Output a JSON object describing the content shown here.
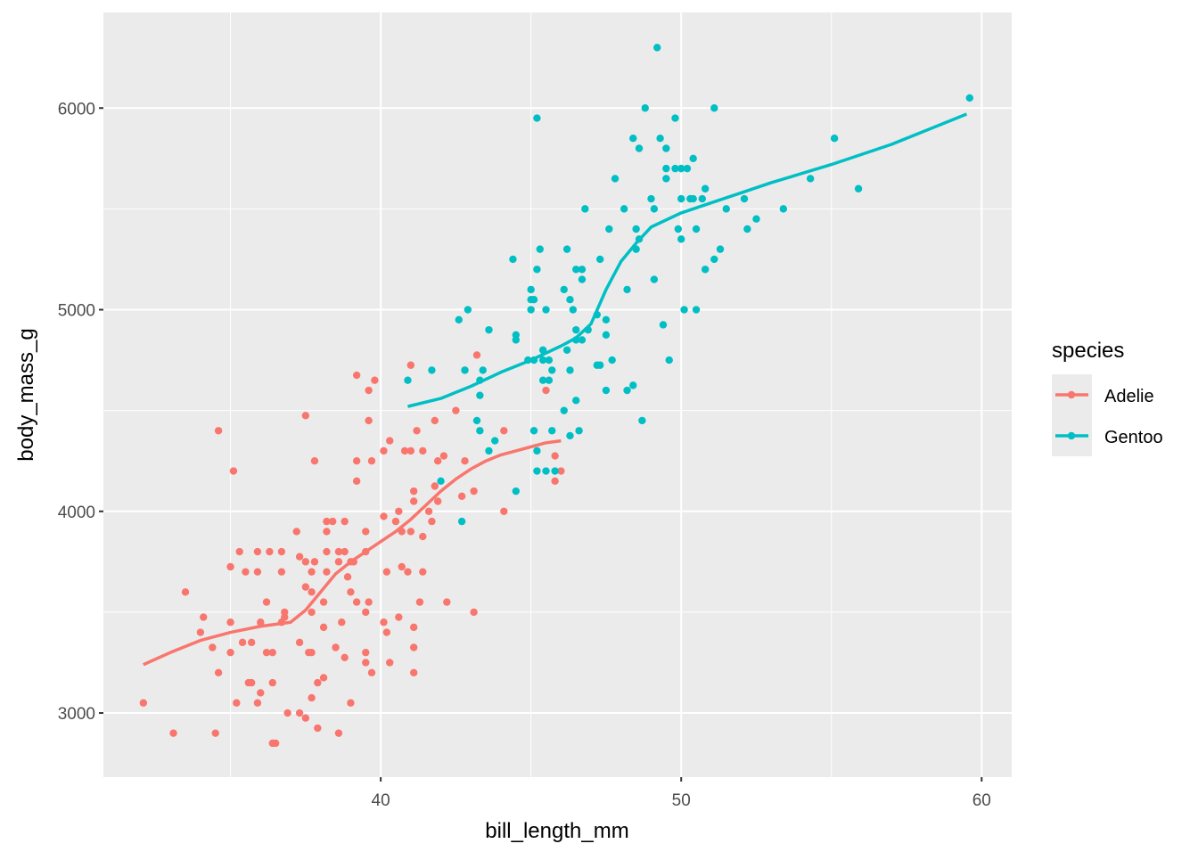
{
  "chart_data": {
    "type": "scatter",
    "xlabel": "bill_length_mm",
    "ylabel": "body_mass_g",
    "xlim": [
      30.77,
      61.0
    ],
    "ylim": [
      2682,
      6474
    ],
    "x_ticks": [
      40,
      50,
      60
    ],
    "x_minor": [
      35,
      45,
      55
    ],
    "y_ticks": [
      3000,
      4000,
      5000,
      6000
    ],
    "y_minor": [
      3500,
      4500,
      5500
    ],
    "grid": true,
    "legend": {
      "title": "species",
      "placement": "right"
    },
    "colors": {
      "panel": "#EBEBEB",
      "grid": "#FFFFFF",
      "tick_text": "#4D4D4D"
    },
    "series": [
      {
        "name": "Adelie",
        "color": "#F8766D",
        "points": [
          [
            32.1,
            3050
          ],
          [
            33.1,
            2900
          ],
          [
            34.5,
            2900
          ],
          [
            34.6,
            4400
          ],
          [
            35.1,
            4200
          ],
          [
            33.5,
            3600
          ],
          [
            34.1,
            3475
          ],
          [
            34.0,
            3400
          ],
          [
            34.4,
            3325
          ],
          [
            34.6,
            3200
          ],
          [
            35.0,
            3300
          ],
          [
            35.0,
            3450
          ],
          [
            35.2,
            3050
          ],
          [
            35.0,
            3725
          ],
          [
            35.3,
            3800
          ],
          [
            35.5,
            3700
          ],
          [
            35.9,
            3800
          ],
          [
            36.3,
            3800
          ],
          [
            36.7,
            3800
          ],
          [
            35.4,
            3350
          ],
          [
            35.7,
            3350
          ],
          [
            35.6,
            3150
          ],
          [
            35.7,
            3150
          ],
          [
            35.9,
            3050
          ],
          [
            36.0,
            3450
          ],
          [
            35.9,
            3700
          ],
          [
            36.2,
            3550
          ],
          [
            36.0,
            3100
          ],
          [
            36.2,
            3300
          ],
          [
            36.4,
            3300
          ],
          [
            36.4,
            3150
          ],
          [
            36.4,
            2850
          ],
          [
            36.5,
            2850
          ],
          [
            36.7,
            3450
          ],
          [
            36.8,
            3475
          ],
          [
            36.7,
            3700
          ],
          [
            36.8,
            3500
          ],
          [
            36.9,
            3000
          ],
          [
            37.3,
            3000
          ],
          [
            37.5,
            2975
          ],
          [
            37.5,
            3750
          ],
          [
            37.3,
            3775
          ],
          [
            37.2,
            3900
          ],
          [
            37.5,
            4475
          ],
          [
            37.8,
            4250
          ],
          [
            37.5,
            3625
          ],
          [
            37.7,
            3600
          ],
          [
            37.7,
            3700
          ],
          [
            37.8,
            3750
          ],
          [
            37.7,
            3500
          ],
          [
            37.3,
            3350
          ],
          [
            37.6,
            3300
          ],
          [
            37.7,
            3300
          ],
          [
            37.7,
            3075
          ],
          [
            37.9,
            2925
          ],
          [
            37.9,
            3150
          ],
          [
            38.1,
            3175
          ],
          [
            38.1,
            3425
          ],
          [
            38.1,
            3550
          ],
          [
            38.2,
            3700
          ],
          [
            38.2,
            3800
          ],
          [
            38.2,
            3900
          ],
          [
            38.2,
            3950
          ],
          [
            38.4,
            3950
          ],
          [
            38.6,
            3750
          ],
          [
            38.6,
            3800
          ],
          [
            38.8,
            3800
          ],
          [
            38.7,
            3450
          ],
          [
            38.5,
            3325
          ],
          [
            38.8,
            3275
          ],
          [
            38.8,
            3950
          ],
          [
            39.0,
            3600
          ],
          [
            38.9,
            3675
          ],
          [
            39.0,
            3750
          ],
          [
            39.1,
            3750
          ],
          [
            39.2,
            3550
          ],
          [
            39.2,
            4675
          ],
          [
            39.2,
            4250
          ],
          [
            39.2,
            4150
          ],
          [
            39.0,
            3050
          ],
          [
            38.6,
            2900
          ],
          [
            39.5,
            3900
          ],
          [
            39.6,
            4600
          ],
          [
            39.6,
            4450
          ],
          [
            39.7,
            4250
          ],
          [
            39.5,
            3800
          ],
          [
            39.6,
            3550
          ],
          [
            39.5,
            3500
          ],
          [
            39.5,
            3300
          ],
          [
            39.5,
            3250
          ],
          [
            39.7,
            3200
          ],
          [
            39.8,
            4650
          ],
          [
            40.1,
            4300
          ],
          [
            40.2,
            3700
          ],
          [
            40.1,
            3450
          ],
          [
            40.2,
            3400
          ],
          [
            40.1,
            3975
          ],
          [
            40.3,
            4350
          ],
          [
            40.3,
            3250
          ],
          [
            40.5,
            3950
          ],
          [
            40.6,
            4000
          ],
          [
            40.6,
            3475
          ],
          [
            40.7,
            3725
          ],
          [
            40.7,
            3900
          ],
          [
            40.8,
            4300
          ],
          [
            40.9,
            3700
          ],
          [
            41.0,
            4300
          ],
          [
            41.0,
            4725
          ],
          [
            41.0,
            3900
          ],
          [
            41.1,
            4100
          ],
          [
            41.1,
            4050
          ],
          [
            41.1,
            3425
          ],
          [
            41.1,
            3325
          ],
          [
            41.1,
            3200
          ],
          [
            41.2,
            4400
          ],
          [
            41.3,
            3550
          ],
          [
            41.4,
            3700
          ],
          [
            41.4,
            3875
          ],
          [
            41.4,
            4300
          ],
          [
            41.6,
            4000
          ],
          [
            41.7,
            3950
          ],
          [
            41.8,
            4450
          ],
          [
            41.8,
            4125
          ],
          [
            41.9,
            4050
          ],
          [
            41.9,
            4250
          ],
          [
            42.1,
            4275
          ],
          [
            42.2,
            3550
          ],
          [
            42.5,
            4500
          ],
          [
            42.7,
            4075
          ],
          [
            42.8,
            4250
          ],
          [
            42.8,
            4700
          ],
          [
            43.2,
            4775
          ],
          [
            43.1,
            4100
          ],
          [
            43.1,
            3500
          ],
          [
            44.1,
            4000
          ],
          [
            44.1,
            4400
          ],
          [
            45.5,
            4600
          ],
          [
            45.8,
            4275
          ],
          [
            46.0,
            4200
          ],
          [
            45.8,
            4150
          ]
        ],
        "smooth": [
          [
            32.1,
            3240
          ],
          [
            33,
            3300
          ],
          [
            34,
            3360
          ],
          [
            35,
            3400
          ],
          [
            36,
            3430
          ],
          [
            37,
            3450
          ],
          [
            37.5,
            3510
          ],
          [
            38,
            3600
          ],
          [
            38.5,
            3690
          ],
          [
            39,
            3750
          ],
          [
            39.5,
            3800
          ],
          [
            40,
            3850
          ],
          [
            40.5,
            3900
          ],
          [
            41,
            3960
          ],
          [
            41.5,
            4030
          ],
          [
            42,
            4100
          ],
          [
            42.5,
            4160
          ],
          [
            43,
            4210
          ],
          [
            43.5,
            4250
          ],
          [
            44,
            4280
          ],
          [
            44.5,
            4300
          ],
          [
            45,
            4320
          ],
          [
            45.5,
            4340
          ],
          [
            46,
            4350
          ]
        ]
      },
      {
        "name": "Gentoo",
        "color": "#00BFC4",
        "points": [
          [
            49.2,
            6300
          ],
          [
            59.6,
            6050
          ],
          [
            45.2,
            5950
          ],
          [
            48.8,
            6000
          ],
          [
            49.8,
            5950
          ],
          [
            51.1,
            6000
          ],
          [
            55.1,
            5850
          ],
          [
            48.4,
            5850
          ],
          [
            49.3,
            5850
          ],
          [
            48.6,
            5800
          ],
          [
            49.5,
            5800
          ],
          [
            47.8,
            5650
          ],
          [
            54.3,
            5650
          ],
          [
            55.9,
            5600
          ],
          [
            49.5,
            5700
          ],
          [
            49.8,
            5700
          ],
          [
            50.0,
            5700
          ],
          [
            50.2,
            5700
          ],
          [
            50.4,
            5750
          ],
          [
            49.5,
            5650
          ],
          [
            50.8,
            5600
          ],
          [
            50.7,
            5550
          ],
          [
            50.4,
            5550
          ],
          [
            50.3,
            5550
          ],
          [
            50.0,
            5550
          ],
          [
            52.1,
            5550
          ],
          [
            46.8,
            5500
          ],
          [
            48.1,
            5500
          ],
          [
            49.1,
            5500
          ],
          [
            51.5,
            5500
          ],
          [
            53.4,
            5500
          ],
          [
            52.5,
            5450
          ],
          [
            49.9,
            5400
          ],
          [
            50.5,
            5400
          ],
          [
            52.2,
            5400
          ],
          [
            48.5,
            5400
          ],
          [
            47.6,
            5400
          ],
          [
            49.0,
            5550
          ],
          [
            48.6,
            5350
          ],
          [
            50.0,
            5350
          ],
          [
            45.3,
            5300
          ],
          [
            46.2,
            5300
          ],
          [
            48.5,
            5300
          ],
          [
            51.3,
            5300
          ],
          [
            51.1,
            5250
          ],
          [
            44.4,
            5250
          ],
          [
            47.3,
            5250
          ],
          [
            50.8,
            5200
          ],
          [
            45.2,
            5200
          ],
          [
            46.5,
            5200
          ],
          [
            46.7,
            5200
          ],
          [
            49.1,
            5150
          ],
          [
            46.7,
            5150
          ],
          [
            45.0,
            5100
          ],
          [
            46.1,
            5100
          ],
          [
            48.2,
            5100
          ],
          [
            46.3,
            5050
          ],
          [
            45.0,
            5050
          ],
          [
            45.1,
            5050
          ],
          [
            42.9,
            5000
          ],
          [
            45.0,
            5000
          ],
          [
            45.5,
            5000
          ],
          [
            46.4,
            5000
          ],
          [
            50.1,
            5000
          ],
          [
            50.5,
            5000
          ],
          [
            42.6,
            4950
          ],
          [
            47.2,
            4975
          ],
          [
            47.5,
            4950
          ],
          [
            49.4,
            4925
          ],
          [
            43.6,
            4900
          ],
          [
            46.5,
            4900
          ],
          [
            46.9,
            4900
          ],
          [
            44.5,
            4875
          ],
          [
            44.5,
            4850
          ],
          [
            46.5,
            4850
          ],
          [
            46.7,
            4850
          ],
          [
            47.5,
            4875
          ],
          [
            46.2,
            4800
          ],
          [
            45.4,
            4800
          ],
          [
            45.4,
            4750
          ],
          [
            45.6,
            4750
          ],
          [
            44.9,
            4750
          ],
          [
            45.1,
            4750
          ],
          [
            47.7,
            4750
          ],
          [
            49.6,
            4750
          ],
          [
            42.8,
            4700
          ],
          [
            40.9,
            4650
          ],
          [
            41.7,
            4700
          ],
          [
            43.4,
            4700
          ],
          [
            46.3,
            4700
          ],
          [
            47.2,
            4725
          ],
          [
            47.3,
            4725
          ],
          [
            45.7,
            4700
          ],
          [
            43.3,
            4650
          ],
          [
            45.6,
            4650
          ],
          [
            45.4,
            4650
          ],
          [
            48.4,
            4625
          ],
          [
            48.2,
            4600
          ],
          [
            47.5,
            4600
          ],
          [
            43.3,
            4575
          ],
          [
            46.1,
            4500
          ],
          [
            46.5,
            4550
          ],
          [
            48.7,
            4450
          ],
          [
            43.2,
            4450
          ],
          [
            43.3,
            4400
          ],
          [
            45.1,
            4400
          ],
          [
            45.7,
            4400
          ],
          [
            46.3,
            4375
          ],
          [
            46.6,
            4400
          ],
          [
            43.8,
            4350
          ],
          [
            45.2,
            4300
          ],
          [
            43.6,
            4300
          ],
          [
            45.2,
            4200
          ],
          [
            45.5,
            4200
          ],
          [
            45.8,
            4200
          ],
          [
            44.5,
            4100
          ],
          [
            42.0,
            4150
          ],
          [
            42.7,
            3950
          ]
        ],
        "smooth": [
          [
            40.9,
            4520
          ],
          [
            42,
            4560
          ],
          [
            43,
            4620
          ],
          [
            44,
            4690
          ],
          [
            45,
            4750
          ],
          [
            46,
            4820
          ],
          [
            46.5,
            4860
          ],
          [
            47,
            4930
          ],
          [
            47.5,
            5100
          ],
          [
            48,
            5240
          ],
          [
            48.5,
            5330
          ],
          [
            49,
            5410
          ],
          [
            50,
            5480
          ],
          [
            51,
            5530
          ],
          [
            52,
            5580
          ],
          [
            53,
            5630
          ],
          [
            55,
            5720
          ],
          [
            57,
            5820
          ],
          [
            59.5,
            5970
          ]
        ]
      }
    ]
  }
}
